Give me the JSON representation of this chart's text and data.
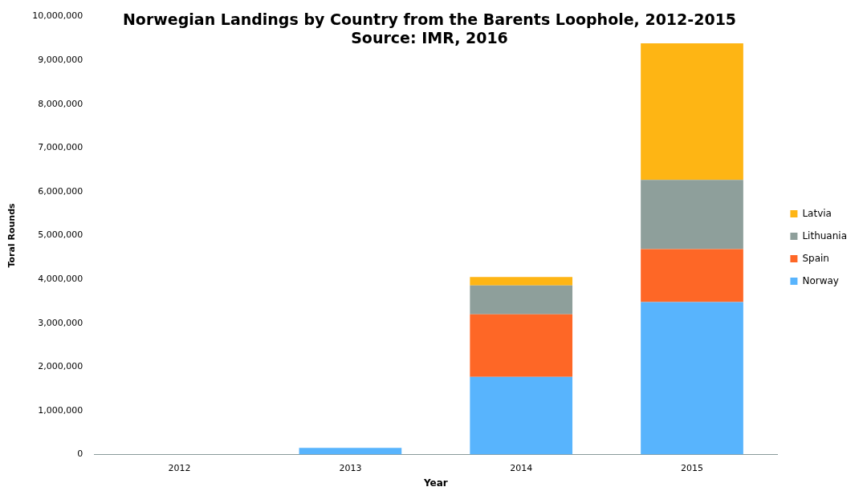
{
  "chart_data": {
    "type": "bar",
    "title": [
      "Norwegian Landings by Country from the Barents Loophole, 2012-2015",
      "Source: IMR, 2016"
    ],
    "xlabel": "Year",
    "ylabel": "Toral Rounds",
    "categories": [
      "2012",
      "2013",
      "2014",
      "2015"
    ],
    "stacked": true,
    "legend": "right",
    "grid": false,
    "ylim": [
      0,
      10000000
    ],
    "yticks": [
      0,
      {
        "value": 1000000,
        "label": "1,000,000"
      },
      {
        "value": 2000000,
        "label": "2,000,000"
      },
      {
        "value": 3000000,
        "label": "3,000,000"
      },
      {
        "value": 4000000,
        "label": "4,000,000"
      },
      {
        "value": 5000000,
        "label": "5,000,000"
      },
      {
        "value": 6000000,
        "label": "6,000,000"
      },
      {
        "value": 7000000,
        "label": "7,000,000"
      },
      {
        "value": 8000000,
        "label": "8,000,000"
      },
      {
        "value": 9000000,
        "label": "9,000,000"
      },
      {
        "value": 10000000,
        "label": "10,000,000"
      }
    ],
    "series": [
      {
        "name": "Norway",
        "color": "#58b4fd",
        "values": [
          0,
          150000,
          1770000,
          3480000
        ]
      },
      {
        "name": "Spain",
        "color": "#fe6726",
        "values": [
          0,
          0,
          1430000,
          1210000
        ]
      },
      {
        "name": "Lithuania",
        "color": "#8e9f9b",
        "values": [
          0,
          0,
          660000,
          1580000
        ]
      },
      {
        "name": "Latvia",
        "color": "#feb514",
        "values": [
          0,
          0,
          190000,
          3120000
        ]
      }
    ]
  }
}
